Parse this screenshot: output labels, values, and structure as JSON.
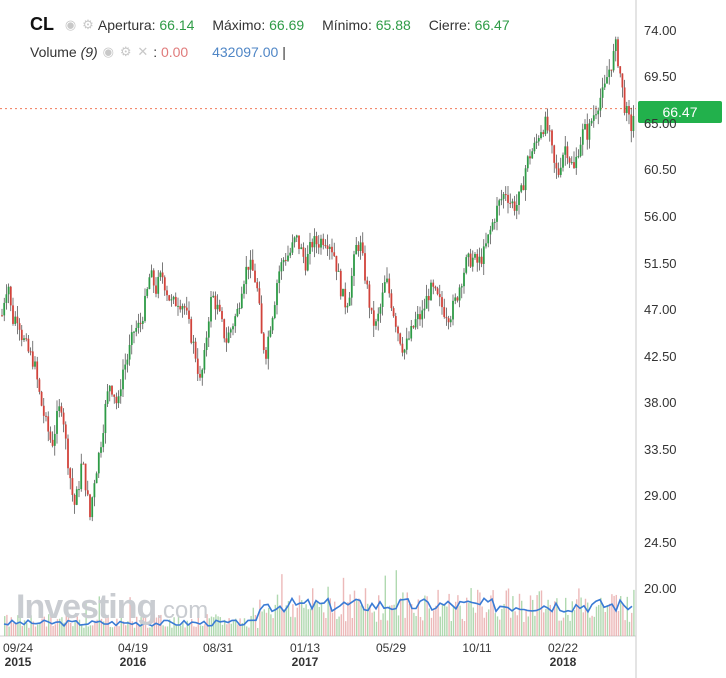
{
  "header": {
    "symbol": "CL",
    "open_label": "Apertura:",
    "open_value": "66.14",
    "high_label": "Máximo:",
    "high_value": "66.69",
    "low_label": "Mínimo:",
    "low_value": "65.88",
    "close_label": "Cierre:",
    "close_value": "66.47"
  },
  "volume": {
    "label": "Volume",
    "period": "(9)",
    "value1": "0.00",
    "value2": "432097.00",
    "cursor": "|"
  },
  "last_price_tag": "66.47",
  "watermark": {
    "brand": "Investing",
    "suffix": ".com"
  },
  "colors": {
    "up": "#2e9b46",
    "down": "#d1433b",
    "price_tag": "#22b14c",
    "volume_line": "#3a7bd5"
  },
  "chart_data": {
    "type": "candlestick",
    "ylim": [
      15.5,
      76.0
    ],
    "y_ticks": [
      "74.00",
      "69.50",
      "65.00",
      "60.50",
      "56.00",
      "51.50",
      "47.00",
      "42.50",
      "38.00",
      "33.50",
      "29.00",
      "24.50",
      "20.00"
    ],
    "x_ticks": [
      {
        "label": "09/24",
        "year": "2015"
      },
      {
        "label": "04/19",
        "year": "2016"
      },
      {
        "label": "08/31",
        "year": ""
      },
      {
        "label": "01/13",
        "year": "2017"
      },
      {
        "label": "05/29",
        "year": ""
      },
      {
        "label": "10/11",
        "year": ""
      },
      {
        "label": "02/22",
        "year": "2018"
      }
    ],
    "last_price": 66.47,
    "path": [
      [
        0,
        45.0
      ],
      [
        4,
        48.0
      ],
      [
        8,
        50.0
      ],
      [
        12,
        46.0
      ],
      [
        18,
        46.5
      ],
      [
        22,
        44.5
      ],
      [
        28,
        43.0
      ],
      [
        34,
        42.0
      ],
      [
        40,
        38.5
      ],
      [
        46,
        36.0
      ],
      [
        52,
        34.0
      ],
      [
        58,
        37.0
      ],
      [
        62,
        38.0
      ],
      [
        66,
        34.0
      ],
      [
        70,
        31.0
      ],
      [
        74,
        28.0
      ],
      [
        78,
        29.5
      ],
      [
        82,
        32.5
      ],
      [
        86,
        30.0
      ],
      [
        90,
        27.0
      ],
      [
        94,
        30.5
      ],
      [
        98,
        32.5
      ],
      [
        102,
        35.0
      ],
      [
        106,
        38.0
      ],
      [
        110,
        40.0
      ],
      [
        114,
        39.0
      ],
      [
        118,
        37.5
      ],
      [
        122,
        41.0
      ],
      [
        128,
        42.5
      ],
      [
        134,
        45.0
      ],
      [
        140,
        45.5
      ],
      [
        146,
        48.0
      ],
      [
        150,
        50.5
      ],
      [
        156,
        49.0
      ],
      [
        162,
        50.5
      ],
      [
        168,
        48.5
      ],
      [
        172,
        47.5
      ],
      [
        178,
        48.0
      ],
      [
        184,
        47.5
      ],
      [
        190,
        45.0
      ],
      [
        196,
        42.5
      ],
      [
        200,
        40.0
      ],
      [
        204,
        42.0
      ],
      [
        208,
        46.0
      ],
      [
        212,
        48.5
      ],
      [
        218,
        47.0
      ],
      [
        222,
        45.5
      ],
      [
        226,
        44.0
      ],
      [
        232,
        45.5
      ],
      [
        238,
        47.0
      ],
      [
        242,
        49.5
      ],
      [
        248,
        51.5
      ],
      [
        254,
        50.5
      ],
      [
        258,
        48.5
      ],
      [
        262,
        44.0
      ],
      [
        266,
        43.0
      ],
      [
        270,
        45.5
      ],
      [
        274,
        47.5
      ],
      [
        278,
        50.5
      ],
      [
        284,
        52.0
      ],
      [
        290,
        52.5
      ],
      [
        296,
        54.0
      ],
      [
        300,
        53.0
      ],
      [
        306,
        51.5
      ],
      [
        312,
        53.5
      ],
      [
        318,
        53.5
      ],
      [
        324,
        54.0
      ],
      [
        330,
        53.5
      ],
      [
        334,
        52.5
      ],
      [
        338,
        50.5
      ],
      [
        342,
        48.5
      ],
      [
        346,
        47.5
      ],
      [
        350,
        49.0
      ],
      [
        356,
        53.0
      ],
      [
        360,
        53.5
      ],
      [
        364,
        51.0
      ],
      [
        368,
        48.5
      ],
      [
        372,
        46.0
      ],
      [
        376,
        45.5
      ],
      [
        380,
        47.0
      ],
      [
        386,
        50.0
      ],
      [
        392,
        47.5
      ],
      [
        398,
        45.0
      ],
      [
        404,
        43.0
      ],
      [
        410,
        44.5
      ],
      [
        416,
        46.0
      ],
      [
        422,
        46.5
      ],
      [
        428,
        48.5
      ],
      [
        432,
        49.0
      ],
      [
        438,
        48.0
      ],
      [
        444,
        47.0
      ],
      [
        450,
        46.5
      ],
      [
        456,
        48.0
      ],
      [
        460,
        49.5
      ],
      [
        466,
        51.5
      ],
      [
        472,
        52.0
      ],
      [
        478,
        51.5
      ],
      [
        484,
        52.5
      ],
      [
        490,
        54.5
      ],
      [
        496,
        56.5
      ],
      [
        500,
        57.5
      ],
      [
        506,
        58.5
      ],
      [
        510,
        57.5
      ],
      [
        516,
        57.0
      ],
      [
        522,
        58.5
      ],
      [
        526,
        61.0
      ],
      [
        530,
        62.0
      ],
      [
        536,
        63.0
      ],
      [
        540,
        64.5
      ],
      [
        546,
        65.0
      ],
      [
        550,
        63.5
      ],
      [
        554,
        61.0
      ],
      [
        558,
        60.0
      ],
      [
        562,
        62.0
      ],
      [
        566,
        63.0
      ],
      [
        570,
        61.5
      ],
      [
        574,
        60.5
      ],
      [
        578,
        62.5
      ],
      [
        584,
        64.5
      ],
      [
        588,
        64.0
      ],
      [
        592,
        65.5
      ],
      [
        596,
        66.5
      ],
      [
        600,
        67.5
      ],
      [
        604,
        68.0
      ],
      [
        608,
        70.0
      ],
      [
        612,
        71.0
      ],
      [
        616,
        72.5
      ],
      [
        620,
        70.0
      ],
      [
        624,
        67.0
      ],
      [
        628,
        65.5
      ],
      [
        632,
        64.5
      ],
      [
        634,
        66.47
      ]
    ]
  }
}
